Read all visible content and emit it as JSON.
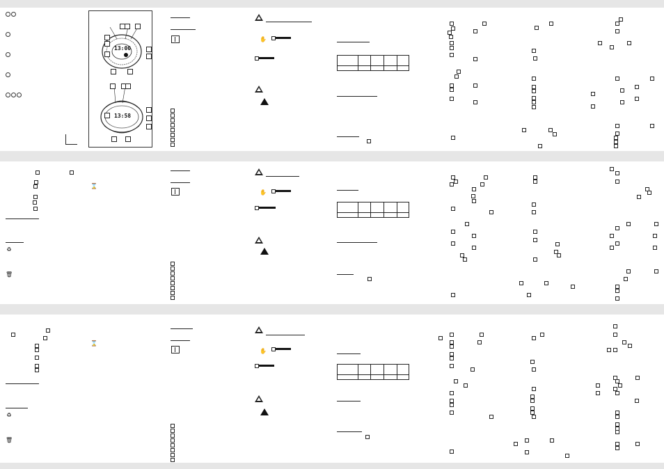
{
  "figure": {
    "display_top": "13:00",
    "display_bottom": "13:58"
  }
}
